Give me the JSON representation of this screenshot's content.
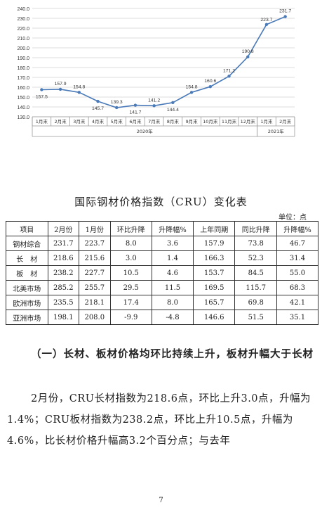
{
  "chart_data": {
    "type": "line",
    "ylim": [
      130.0,
      240.0
    ],
    "yticks": [
      "130.0",
      "140.0",
      "150.0",
      "160.0",
      "170.0",
      "180.0",
      "190.0",
      "200.0",
      "210.0",
      "220.0",
      "230.0",
      "240.0"
    ],
    "categories": [
      "1月末",
      "2月末",
      "3月末",
      "4月末",
      "5月末",
      "6月末",
      "7月末",
      "8月末",
      "9月末",
      "10月末",
      "11月末",
      "12月末",
      "1月末",
      "2月末"
    ],
    "values": [
      157.5,
      157.9,
      154.8,
      145.7,
      139.3,
      141.7,
      141.2,
      144.4,
      154.8,
      160.6,
      171.2,
      190.8,
      223.7,
      231.7
    ],
    "labels": [
      "157.5",
      "157.9",
      "154.8",
      "145.7",
      "139.3",
      "141.7",
      "141.2",
      "144.4",
      "154.8",
      "160.6",
      "171.2",
      "190.8",
      "223.7",
      "231.7"
    ],
    "year_groups": [
      {
        "label": "2020年",
        "count": 12
      },
      {
        "label": "2021年",
        "count": 2
      }
    ],
    "grid": "horizontal",
    "line_color": "#4a7ab8"
  },
  "table": {
    "caption": "国际钢材价格指数（CRU）变化表",
    "unit": "单位：点",
    "headers": [
      "项目",
      "2月份",
      "1月份",
      "环比升降",
      "升降幅%",
      "上年同期",
      "同比升降",
      "升降幅%"
    ],
    "rows": [
      [
        "钢材综合",
        "231.7",
        "223.7",
        "8.0",
        "3.6",
        "157.9",
        "73.8",
        "46.7"
      ],
      [
        "长　材",
        "218.6",
        "215.6",
        "3.0",
        "1.4",
        "166.3",
        "52.3",
        "31.4"
      ],
      [
        "板　材",
        "238.2",
        "227.7",
        "10.5",
        "4.6",
        "153.7",
        "84.5",
        "55.0"
      ],
      [
        "北美市场",
        "285.2",
        "255.7",
        "29.5",
        "11.5",
        "169.5",
        "115.7",
        "68.3"
      ],
      [
        "欧洲市场",
        "235.5",
        "218.1",
        "17.4",
        "8.0",
        "165.7",
        "69.8",
        "42.1"
      ],
      [
        "亚洲市场",
        "198.1",
        "208.0",
        "-9.9",
        "-4.8",
        "146.6",
        "51.5",
        "35.1"
      ]
    ]
  },
  "section_heading": "（一）长材、板材价格均环比持续上升，板材升幅大于长材",
  "paragraph": "2月份，CRU长材指数为218.6点，环比上升3.0点，升幅为1.4%；CRU板材指数为238.2点，环比上升10.5点，升幅为4.6%，比长材价格升幅高3.2个百分点；与去年",
  "page_number": "7"
}
